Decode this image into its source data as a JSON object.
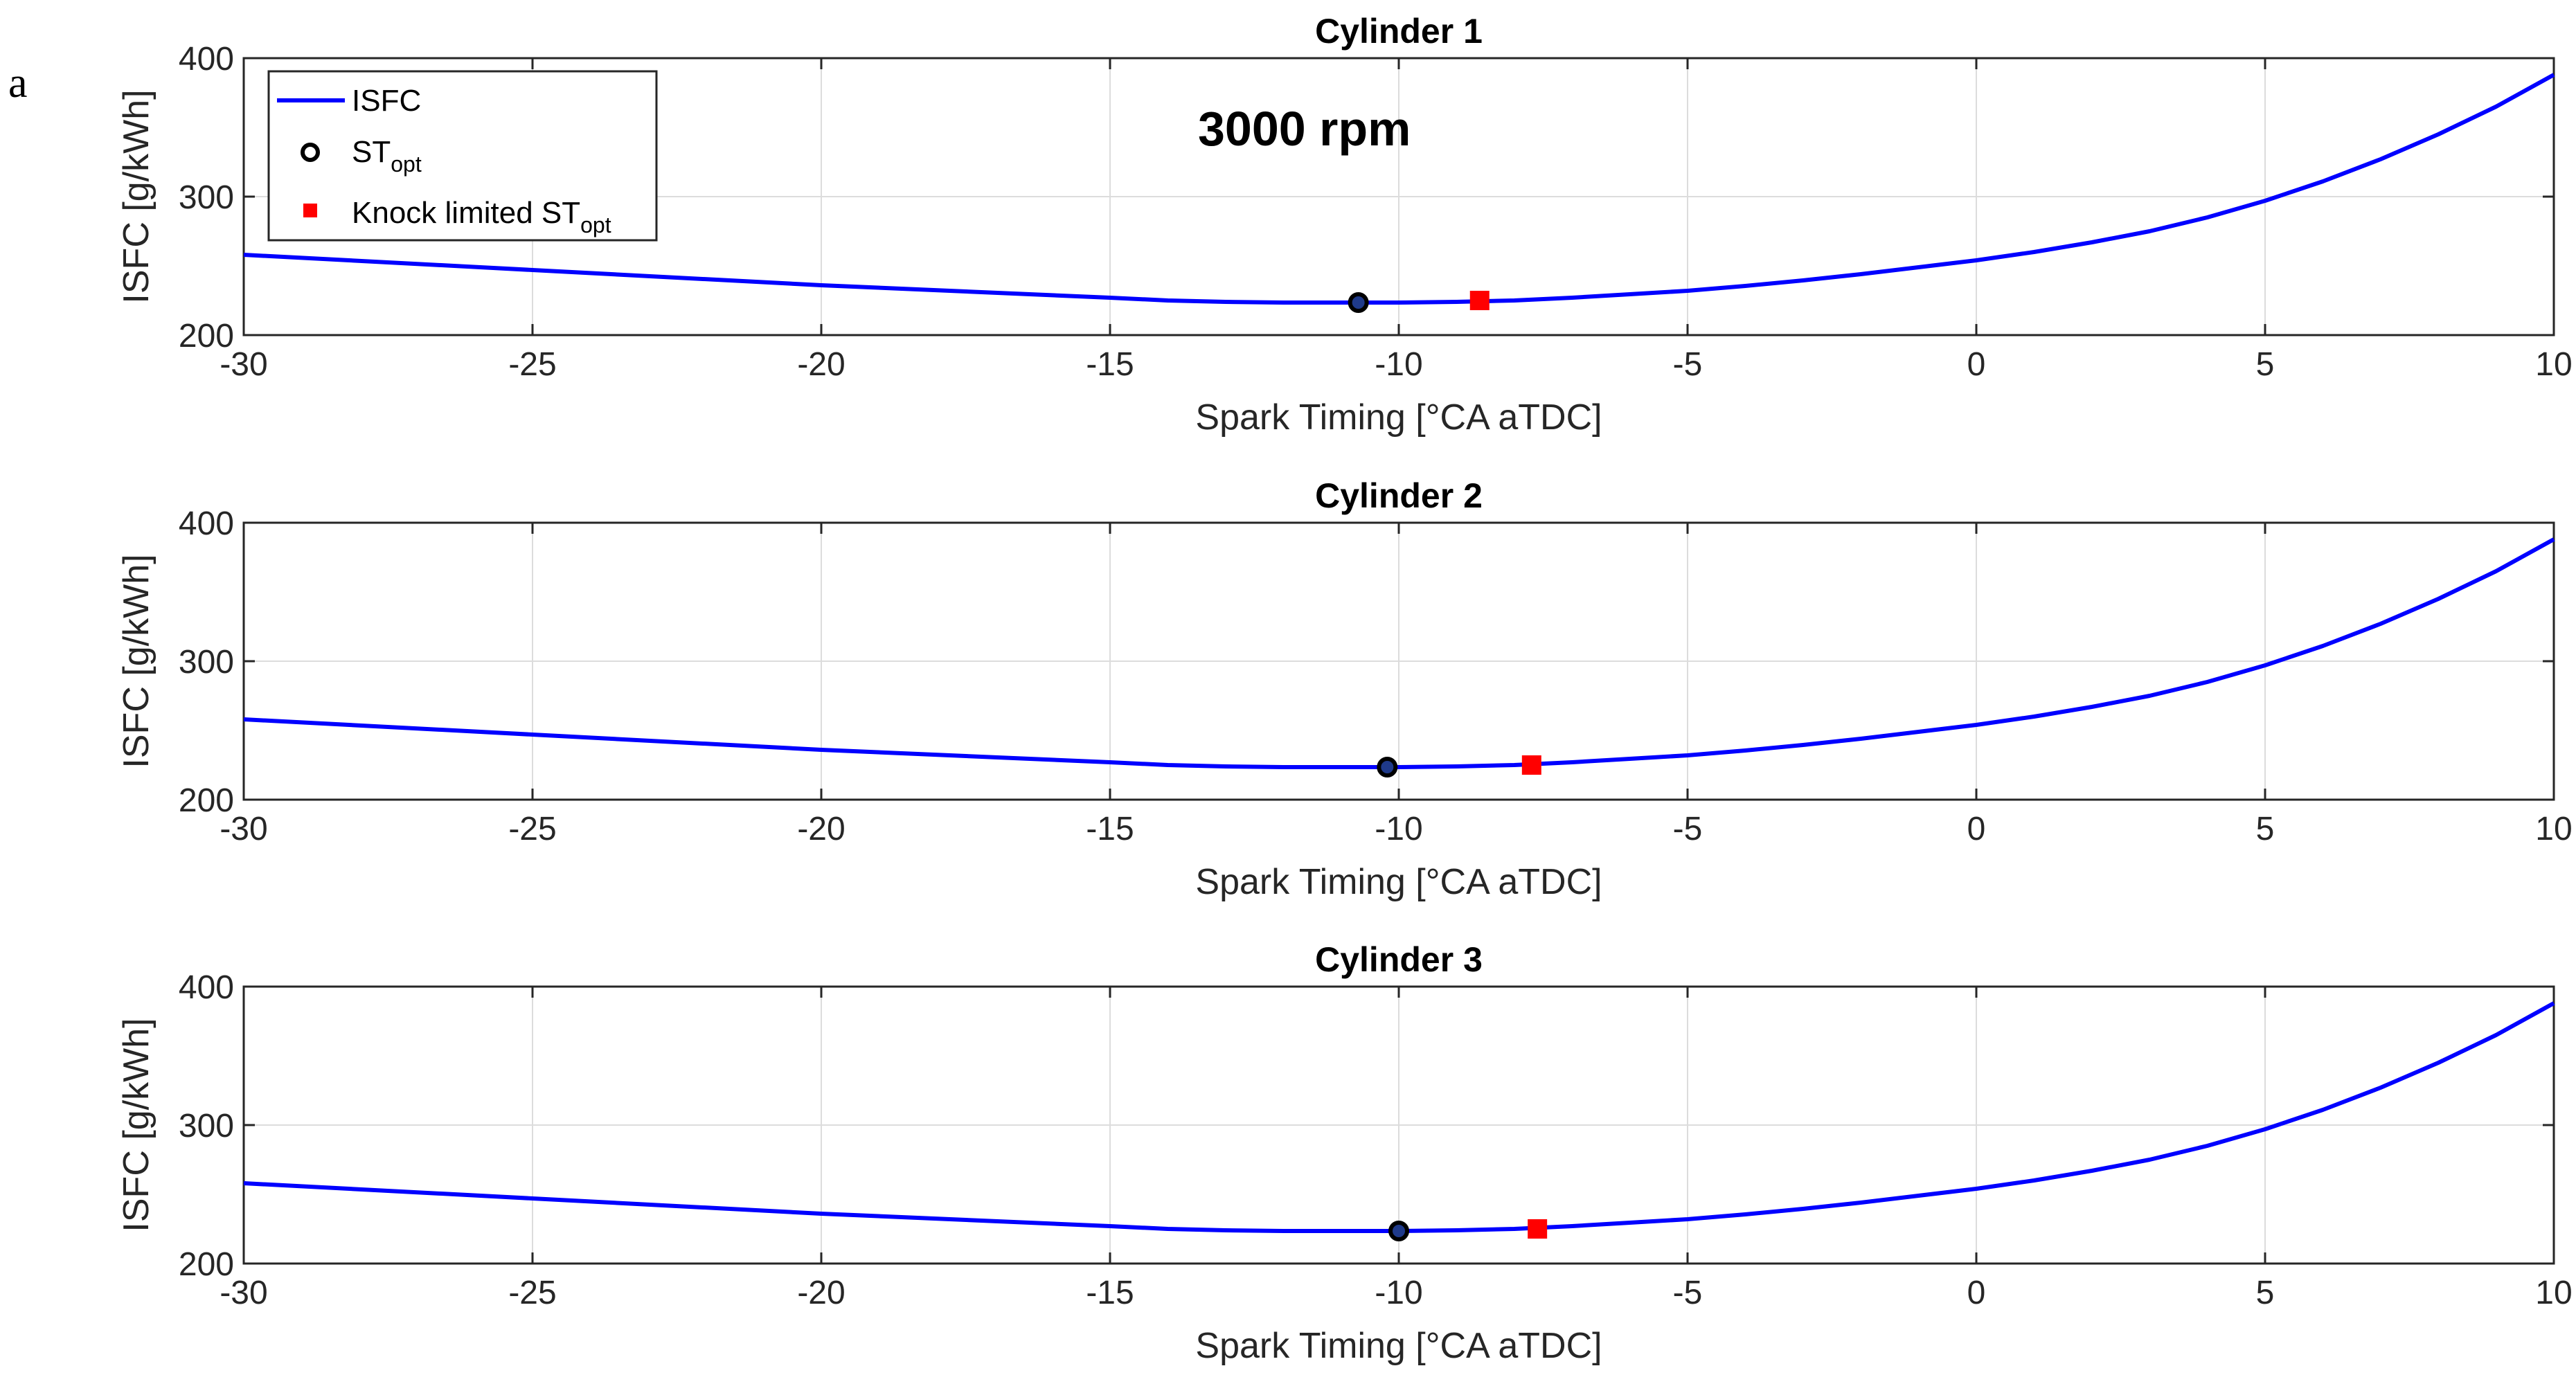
{
  "figure": {
    "panel_letter": "a",
    "annotation": "3000 rpm"
  },
  "colors": {
    "isfc_line": "#0000ff",
    "st_opt_marker": "#000000",
    "knock_marker": "#ff0000",
    "grid": "#dcdcdc",
    "axis": "#262626"
  },
  "legend": {
    "entries": [
      {
        "label": "ISFC",
        "sub": ""
      },
      {
        "label": "ST",
        "sub": "opt"
      },
      {
        "label": "Knock limited ST",
        "sub": "opt"
      }
    ]
  },
  "chart_data": [
    {
      "type": "line",
      "title": "Cylinder 1",
      "xlabel": "Spark Timing [°CA aTDC]",
      "ylabel": "ISFC [g/kWh]",
      "xlim": [
        -30,
        10
      ],
      "ylim": [
        200,
        400
      ],
      "xticks": [
        -30,
        -25,
        -20,
        -15,
        -10,
        -5,
        0,
        5,
        10
      ],
      "yticks": [
        200,
        300,
        400
      ],
      "grid": true,
      "series": [
        {
          "name": "ISFC",
          "x": [
            -30,
            -25,
            -20,
            -15,
            -14,
            -13,
            -12,
            -11,
            -10,
            -9,
            -8,
            -7,
            -6,
            -5,
            -4,
            -3,
            -2,
            -1,
            0,
            1,
            2,
            3,
            4,
            5,
            6,
            7,
            8,
            9,
            10
          ],
          "y": [
            258,
            247,
            236,
            227,
            225,
            224,
            223.5,
            223.5,
            223.5,
            224,
            225,
            227,
            229.5,
            232,
            235.5,
            239.5,
            244,
            249,
            254,
            260,
            267,
            275,
            285,
            297,
            311,
            327,
            345,
            365,
            388
          ]
        },
        {
          "name": "ST_opt",
          "x": [
            -10.7
          ],
          "y": [
            223.5
          ]
        },
        {
          "name": "Knock limited ST_opt",
          "x": [
            -8.6
          ],
          "y": [
            225
          ]
        }
      ]
    },
    {
      "type": "line",
      "title": "Cylinder 2",
      "xlabel": "Spark Timing [°CA aTDC]",
      "ylabel": "ISFC [g/kWh]",
      "xlim": [
        -30,
        10
      ],
      "ylim": [
        200,
        400
      ],
      "xticks": [
        -30,
        -25,
        -20,
        -15,
        -10,
        -5,
        0,
        5,
        10
      ],
      "yticks": [
        200,
        300,
        400
      ],
      "grid": true,
      "series": [
        {
          "name": "ISFC",
          "x": [
            -30,
            -25,
            -20,
            -15,
            -14,
            -13,
            -12,
            -11,
            -10,
            -9,
            -8,
            -7,
            -6,
            -5,
            -4,
            -3,
            -2,
            -1,
            0,
            1,
            2,
            3,
            4,
            5,
            6,
            7,
            8,
            9,
            10
          ],
          "y": [
            258,
            247,
            236,
            227,
            225,
            224,
            223.5,
            223.5,
            223.5,
            224,
            225,
            227,
            229.5,
            232,
            235.5,
            239.5,
            244,
            249,
            254,
            260,
            267,
            275,
            285,
            297,
            311,
            327,
            345,
            365,
            388
          ]
        },
        {
          "name": "ST_opt",
          "x": [
            -10.2
          ],
          "y": [
            223.5
          ]
        },
        {
          "name": "Knock limited ST_opt",
          "x": [
            -7.7
          ],
          "y": [
            225
          ]
        }
      ]
    },
    {
      "type": "line",
      "title": "Cylinder 3",
      "xlabel": "Spark Timing [°CA aTDC]",
      "ylabel": "ISFC [g/kWh]",
      "xlim": [
        -30,
        10
      ],
      "ylim": [
        200,
        400
      ],
      "xticks": [
        -30,
        -25,
        -20,
        -15,
        -10,
        -5,
        0,
        5,
        10
      ],
      "yticks": [
        200,
        300,
        400
      ],
      "grid": true,
      "series": [
        {
          "name": "ISFC",
          "x": [
            -30,
            -25,
            -20,
            -15,
            -14,
            -13,
            -12,
            -11,
            -10,
            -9,
            -8,
            -7,
            -6,
            -5,
            -4,
            -3,
            -2,
            -1,
            0,
            1,
            2,
            3,
            4,
            5,
            6,
            7,
            8,
            9,
            10
          ],
          "y": [
            258,
            247,
            236,
            227,
            225,
            224,
            223.5,
            223.5,
            223.5,
            224,
            225,
            227,
            229.5,
            232,
            235.5,
            239.5,
            244,
            249,
            254,
            260,
            267,
            275,
            285,
            297,
            311,
            327,
            345,
            365,
            388
          ]
        },
        {
          "name": "ST_opt",
          "x": [
            -10.0
          ],
          "y": [
            223.5
          ]
        },
        {
          "name": "Knock limited ST_opt",
          "x": [
            -7.6
          ],
          "y": [
            225
          ]
        }
      ]
    }
  ]
}
